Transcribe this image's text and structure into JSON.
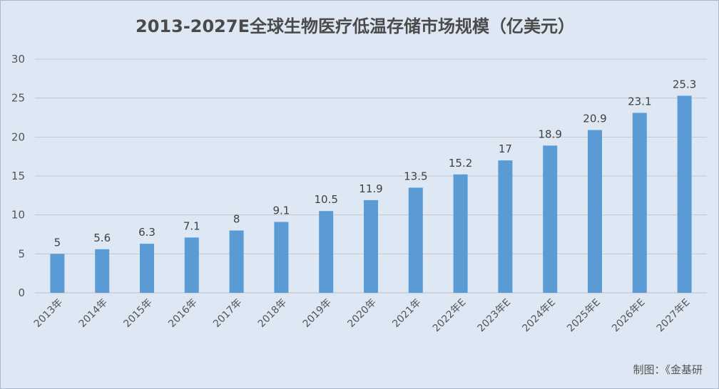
{
  "chart_data": {
    "type": "bar",
    "title": "2013-2027E全球生物医疗低温存储市场规模（亿美元）",
    "categories": [
      "2013年",
      "2014年",
      "2015年",
      "2016年",
      "2017年",
      "2018年",
      "2019年",
      "2020年",
      "2021年",
      "2022年E",
      "2023年E",
      "2024年E",
      "2025年E",
      "2026年E",
      "2027年E"
    ],
    "values": [
      5,
      5.6,
      6.3,
      7.1,
      8,
      9.1,
      10.5,
      11.9,
      13.5,
      15.2,
      17,
      18.9,
      20.9,
      23.1,
      25.3
    ],
    "value_labels": [
      "5",
      "5.6",
      "6.3",
      "7.1",
      "8",
      "9.1",
      "10.5",
      "11.9",
      "13.5",
      "15.2",
      "17",
      "18.9",
      "20.9",
      "23.1",
      "25.3"
    ],
    "ylim": [
      0,
      30
    ],
    "yticks": [
      "0",
      "5",
      "10",
      "15",
      "20",
      "25",
      "30"
    ],
    "grid": true,
    "bar_color": "#5b9bd5",
    "background_color": "#dde8f4"
  },
  "footer": {
    "source": "制图：《金基研"
  }
}
